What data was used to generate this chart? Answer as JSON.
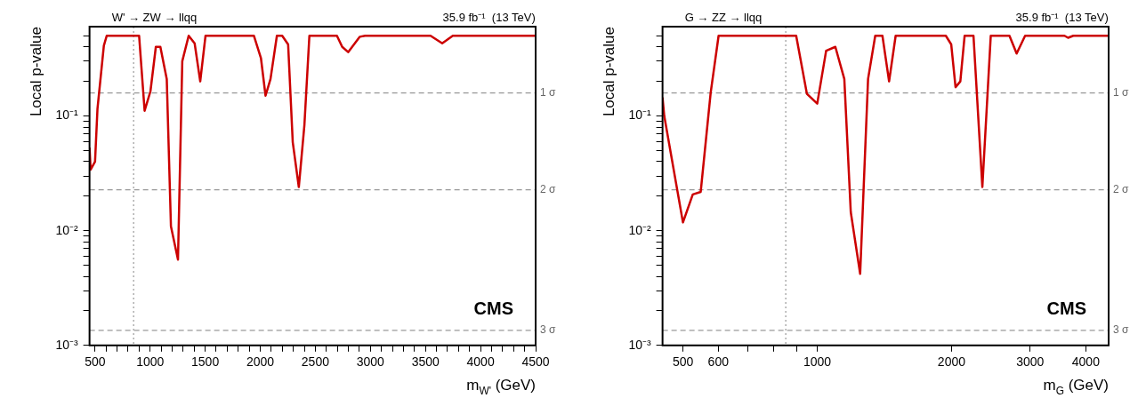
{
  "chart_data": [
    {
      "type": "line",
      "title": "W' → ZW → llqq",
      "subtitle": "35.9 fb⁻¹  (13 TeV)",
      "xlabel": "m$_{W'}$ (GeV)",
      "ylabel": "Local p-value",
      "log": "y",
      "x": [
        450,
        460,
        500,
        522,
        580,
        606,
        788,
        900,
        950,
        1003,
        1052,
        1093,
        1151,
        1189,
        1253,
        1292,
        1350,
        1404,
        1455,
        1503,
        1942,
        2006,
        2048,
        2093,
        2151,
        2199,
        2253,
        2295,
        2350,
        2401,
        2446,
        2696,
        2744,
        2798,
        2904,
        2952,
        3546,
        3652,
        3748,
        4500
      ],
      "series": [
        {
          "color": "#cc0000",
          "values": [
            0.053,
            0.034,
            0.04,
            0.115,
            0.41,
            0.5,
            0.5,
            0.5,
            0.111,
            0.164,
            0.4,
            0.4,
            0.21,
            0.0109,
            0.0056,
            0.3,
            0.5,
            0.43,
            0.2,
            0.5,
            0.5,
            0.32,
            0.15,
            0.21,
            0.5,
            0.5,
            0.42,
            0.059,
            0.024,
            0.084,
            0.5,
            0.5,
            0.4,
            0.36,
            0.49,
            0.5,
            0.5,
            0.43,
            0.5,
            0.5
          ]
        }
      ],
      "xlim": [
        450,
        4500
      ],
      "xticks": [
        500,
        {
          "value": 600,
          "label": null
        },
        {
          "value": 700,
          "label": null
        },
        {
          "value": 800,
          "label": null
        },
        {
          "value": 900,
          "label": null
        },
        1000,
        {
          "value": 1100,
          "label": null
        },
        {
          "value": 1200,
          "label": null
        },
        {
          "value": 1300,
          "label": null
        },
        {
          "value": 1400,
          "label": null
        },
        1500,
        {
          "value": 1600,
          "label": null
        },
        {
          "value": 1700,
          "label": null
        },
        {
          "value": 1800,
          "label": null
        },
        {
          "value": 1900,
          "label": null
        },
        2000,
        {
          "value": 2100,
          "label": null
        },
        {
          "value": 2200,
          "label": null
        },
        {
          "value": 2300,
          "label": null
        },
        {
          "value": 2400,
          "label": null
        },
        2500,
        {
          "value": 2600,
          "label": null
        },
        {
          "value": 2700,
          "label": null
        },
        {
          "value": 2800,
          "label": null
        },
        {
          "value": 2900,
          "label": null
        },
        3000,
        {
          "value": 3100,
          "label": null
        },
        {
          "value": 3200,
          "label": null
        },
        {
          "value": 3300,
          "label": null
        },
        {
          "value": 3400,
          "label": null
        },
        3500,
        {
          "value": 3600,
          "label": null
        },
        {
          "value": 3700,
          "label": null
        },
        {
          "value": 3800,
          "label": null
        },
        {
          "value": 3900,
          "label": null
        },
        4000,
        {
          "value": 4100,
          "label": null
        },
        {
          "value": 4200,
          "label": null
        },
        {
          "value": 4300,
          "label": null
        },
        {
          "value": 4400,
          "label": null
        },
        4500
      ],
      "ylim": [
        0.001,
        0.6
      ],
      "yticks": [
        {
          "value": 0.001,
          "label": "10⁻³"
        },
        {
          "value": 0.002,
          "label": null
        },
        {
          "value": 0.003,
          "label": null
        },
        {
          "value": 0.004,
          "label": null
        },
        {
          "value": 0.005,
          "label": null
        },
        {
          "value": 0.006,
          "label": null
        },
        {
          "value": 0.007,
          "label": null
        },
        {
          "value": 0.008,
          "label": null
        },
        {
          "value": 0.009,
          "label": null
        },
        {
          "value": 0.01,
          "label": "10⁻²"
        },
        {
          "value": 0.02,
          "label": null
        },
        {
          "value": 0.03,
          "label": null
        },
        {
          "value": 0.04,
          "label": null
        },
        {
          "value": 0.05,
          "label": null
        },
        {
          "value": 0.06,
          "label": null
        },
        {
          "value": 0.07,
          "label": null
        },
        {
          "value": 0.08,
          "label": null
        },
        {
          "value": 0.09,
          "label": null
        },
        {
          "value": 0.1,
          "label": "10⁻¹"
        },
        {
          "value": 0.2,
          "label": null
        },
        {
          "value": 0.3,
          "label": null
        },
        {
          "value": 0.4,
          "label": null
        },
        {
          "value": 0.5,
          "label": null
        }
      ],
      "ref_lines": [
        {
          "axis": "y",
          "value": 0.1587,
          "label": "1 σ",
          "color": "#999999",
          "line_style": "dashed"
        },
        {
          "axis": "y",
          "value": 0.02275,
          "label": "2 σ",
          "color": "#999999",
          "line_style": "dashed"
        },
        {
          "axis": "y",
          "value": 0.00135,
          "label": "3 σ",
          "color": "#999999",
          "line_style": "dashed"
        },
        {
          "axis": "x",
          "value": 850,
          "color": "#999999",
          "line_style": "dotted"
        }
      ],
      "annotations": [
        "CMS"
      ]
    },
    {
      "type": "line",
      "title": "G → ZZ → llqq",
      "subtitle": "35.9 fb⁻¹  (13 TeV)",
      "xlabel": "m$_{G}$ (GeV)",
      "ylabel": "Local p-value",
      "log": "xy",
      "x": [
        450,
        454,
        500,
        526,
        548,
        577,
        601,
        897,
        948,
        1000,
        1047,
        1098,
        1150,
        1189,
        1248,
        1300,
        1349,
        1400,
        1449,
        1499,
        1942,
        1997,
        2042,
        2093,
        2140,
        2240,
        2345,
        2449,
        2697,
        2799,
        2924,
        3583,
        3650,
        3750,
        4500
      ],
      "series": [
        {
          "color": "#cc0000",
          "values": [
            0.145,
            0.1,
            0.0118,
            0.0207,
            0.0218,
            0.16,
            0.5,
            0.5,
            0.156,
            0.128,
            0.37,
            0.4,
            0.21,
            0.0145,
            0.0042,
            0.21,
            0.5,
            0.5,
            0.2,
            0.5,
            0.5,
            0.42,
            0.178,
            0.2,
            0.5,
            0.5,
            0.024,
            0.5,
            0.5,
            0.35,
            0.5,
            0.5,
            0.48,
            0.5,
            0.5
          ]
        }
      ],
      "xlim": [
        450,
        4500
      ],
      "xticks": [
        500,
        600,
        {
          "value": 700,
          "label": null
        },
        {
          "value": 800,
          "label": null
        },
        {
          "value": 900,
          "label": null
        },
        1000,
        2000,
        3000,
        4000
      ],
      "ylim": [
        0.001,
        0.6
      ],
      "yticks": [
        {
          "value": 0.001,
          "label": "10⁻³"
        },
        {
          "value": 0.002,
          "label": null
        },
        {
          "value": 0.003,
          "label": null
        },
        {
          "value": 0.004,
          "label": null
        },
        {
          "value": 0.005,
          "label": null
        },
        {
          "value": 0.006,
          "label": null
        },
        {
          "value": 0.007,
          "label": null
        },
        {
          "value": 0.008,
          "label": null
        },
        {
          "value": 0.009,
          "label": null
        },
        {
          "value": 0.01,
          "label": "10⁻²"
        },
        {
          "value": 0.02,
          "label": null
        },
        {
          "value": 0.03,
          "label": null
        },
        {
          "value": 0.04,
          "label": null
        },
        {
          "value": 0.05,
          "label": null
        },
        {
          "value": 0.06,
          "label": null
        },
        {
          "value": 0.07,
          "label": null
        },
        {
          "value": 0.08,
          "label": null
        },
        {
          "value": 0.09,
          "label": null
        },
        {
          "value": 0.1,
          "label": "10⁻¹"
        },
        {
          "value": 0.2,
          "label": null
        },
        {
          "value": 0.3,
          "label": null
        },
        {
          "value": 0.4,
          "label": null
        },
        {
          "value": 0.5,
          "label": null
        }
      ],
      "ref_lines": [
        {
          "axis": "y",
          "value": 0.1587,
          "label": "1 σ",
          "color": "#999999",
          "line_style": "dashed"
        },
        {
          "axis": "y",
          "value": 0.02275,
          "label": "2 σ",
          "color": "#999999",
          "line_style": "dashed"
        },
        {
          "axis": "y",
          "value": 0.00135,
          "label": "3 σ",
          "color": "#999999",
          "line_style": "dashed"
        },
        {
          "axis": "x",
          "value": 850,
          "color": "#999999",
          "line_style": "dotted"
        }
      ],
      "annotations": [
        "CMS"
      ]
    }
  ]
}
